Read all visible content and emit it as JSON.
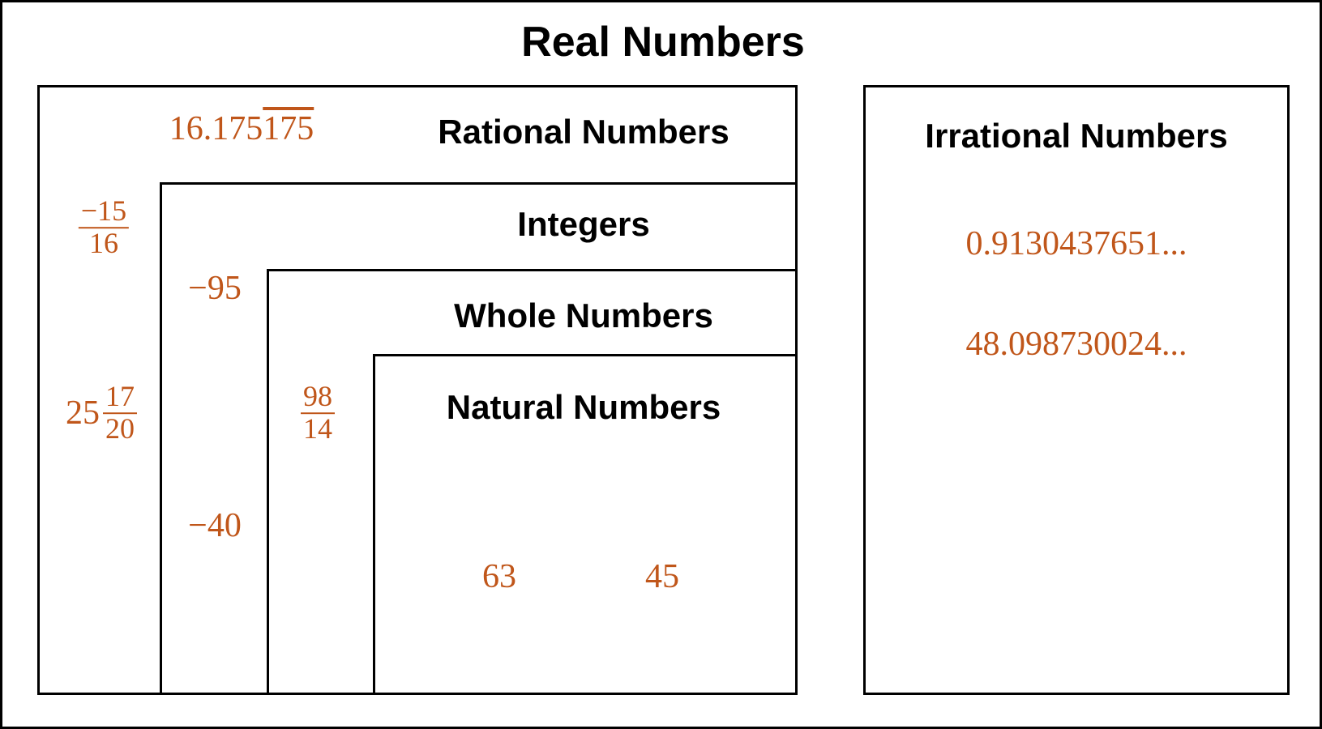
{
  "title": "Real Numbers",
  "rational": {
    "label": "Rational Numbers",
    "repeating_decimal": {
      "digits": "16.175",
      "repeat": "175"
    },
    "fraction": {
      "numerator": "−15",
      "denominator": "16"
    },
    "mixed_number": {
      "whole": "25",
      "numerator": "17",
      "denominator": "20"
    }
  },
  "integers": {
    "label": "Integers",
    "members": [
      "−95",
      "−40"
    ]
  },
  "whole": {
    "label": "Whole Numbers",
    "fraction": {
      "numerator": "98",
      "denominator": "14"
    }
  },
  "natural": {
    "label": "Natural Numbers",
    "members": [
      "63",
      "45"
    ]
  },
  "irrational": {
    "label": "Irrational Numbers",
    "members": [
      "0.9130437651...",
      "48.098730024..."
    ]
  }
}
